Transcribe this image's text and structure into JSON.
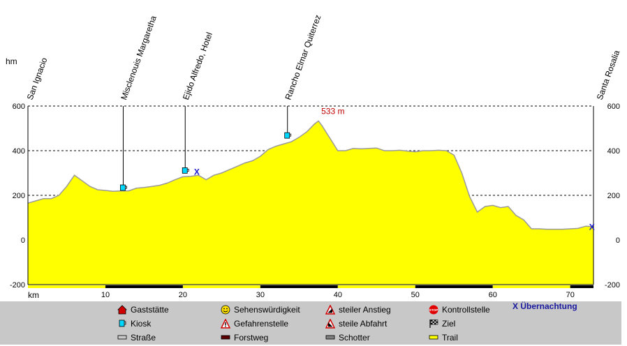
{
  "chart_data": {
    "type": "area",
    "y_unit_label": "hm",
    "x_unit_label": "km",
    "xlim": [
      0,
      73
    ],
    "ylim": [
      -200,
      600
    ],
    "y_ticks": [
      "600",
      "400",
      "200",
      "0",
      "-200"
    ],
    "x_ticks": [
      "10",
      "20",
      "30",
      "40",
      "50",
      "60",
      "70"
    ],
    "grid": "dashed horizontal at 600, 400, 200, 0",
    "fill_color": "#ffff00",
    "max_label": "533 m",
    "max_point": {
      "x": 37.5,
      "y": 533
    },
    "profile": {
      "x": [
        0,
        1,
        2,
        3,
        4,
        5,
        6,
        7,
        8,
        9,
        10,
        11,
        12,
        13,
        14,
        15,
        16,
        17,
        18,
        19,
        20,
        21,
        22,
        23,
        24,
        25,
        26,
        27,
        28,
        29,
        30,
        31,
        32,
        33,
        34,
        35,
        36,
        37,
        37.5,
        38,
        39,
        40,
        41,
        42,
        43,
        44,
        45,
        46,
        47,
        48,
        49,
        50,
        51,
        52,
        53,
        54,
        55,
        56,
        57,
        58,
        59,
        60,
        61,
        62,
        63,
        64,
        65,
        66,
        67,
        68,
        69,
        70,
        71,
        72,
        73
      ],
      "y": [
        165,
        175,
        185,
        185,
        200,
        240,
        290,
        265,
        240,
        225,
        222,
        218,
        220,
        220,
        232,
        235,
        240,
        245,
        255,
        270,
        283,
        285,
        290,
        270,
        290,
        300,
        315,
        330,
        345,
        355,
        375,
        405,
        420,
        430,
        440,
        460,
        485,
        520,
        533,
        510,
        455,
        400,
        400,
        410,
        408,
        410,
        412,
        400,
        400,
        402,
        398,
        395,
        400,
        400,
        402,
        400,
        380,
        300,
        195,
        125,
        150,
        155,
        145,
        150,
        110,
        90,
        50,
        50,
        48,
        48,
        48,
        50,
        52,
        62,
        60
      ]
    },
    "stations": [
      {
        "name": "San Ignacio",
        "x": 0
      },
      {
        "name": "Misclenouis Margaretha",
        "x": 12.3,
        "elev": 228,
        "icon": "kiosk"
      },
      {
        "name": "Ejido Alfredo, Hotel",
        "x": 20.3,
        "elev": 305,
        "icon": "kiosk"
      },
      {
        "name": "Rancho Elmar Quiterrez",
        "x": 33.5,
        "elev": 462,
        "icon": "kiosk"
      },
      {
        "name": "Santa Rosalia",
        "x": 73
      }
    ],
    "overnight_marks": [
      {
        "x": 21.8,
        "elev": 305,
        "symbol": "X"
      },
      {
        "x": 72.8,
        "elev": 58,
        "symbol": "X"
      }
    ],
    "surface_bar": [
      {
        "from": 0,
        "to": 10,
        "color": "#ffff00"
      },
      {
        "from": 10,
        "to": 20,
        "color": "#000000"
      },
      {
        "from": 20,
        "to": 30,
        "color": "#ffff00"
      },
      {
        "from": 30,
        "to": 40,
        "color": "#000000"
      },
      {
        "from": 40,
        "to": 50,
        "color": "#ffff00"
      },
      {
        "from": 50,
        "to": 60,
        "color": "#000000"
      },
      {
        "from": 60,
        "to": 70,
        "color": "#ffff00"
      },
      {
        "from": 70,
        "to": 73,
        "color": "#000000"
      }
    ]
  },
  "legend": {
    "items": [
      {
        "label": "Gaststätte",
        "icon": "restaurant-icon"
      },
      {
        "label": "Sehenswürdigkeit",
        "icon": "smiley-icon"
      },
      {
        "label": "steiler Anstieg",
        "icon": "steep-ascent-icon"
      },
      {
        "label": "Kontrollstelle",
        "icon": "stop-icon"
      },
      {
        "label": "Kiosk",
        "icon": "kiosk-icon"
      },
      {
        "label": "Gefahrenstelle",
        "icon": "danger-icon"
      },
      {
        "label": "steile Abfahrt",
        "icon": "steep-descent-icon"
      },
      {
        "label": "Ziel",
        "icon": "finish-flag-icon"
      },
      {
        "label": "Straße",
        "icon": "road-swatch"
      },
      {
        "label": "Forstweg",
        "icon": "forest-road-swatch"
      },
      {
        "label": "Schotter",
        "icon": "gravel-swatch"
      },
      {
        "label": "Trail",
        "icon": "trail-swatch"
      }
    ],
    "overnight_label": "X Übernachtung",
    "colors": {
      "road": "#c8c8c8",
      "forest": "#5a0000",
      "gravel": "#808080",
      "trail": "#ffff00"
    }
  }
}
